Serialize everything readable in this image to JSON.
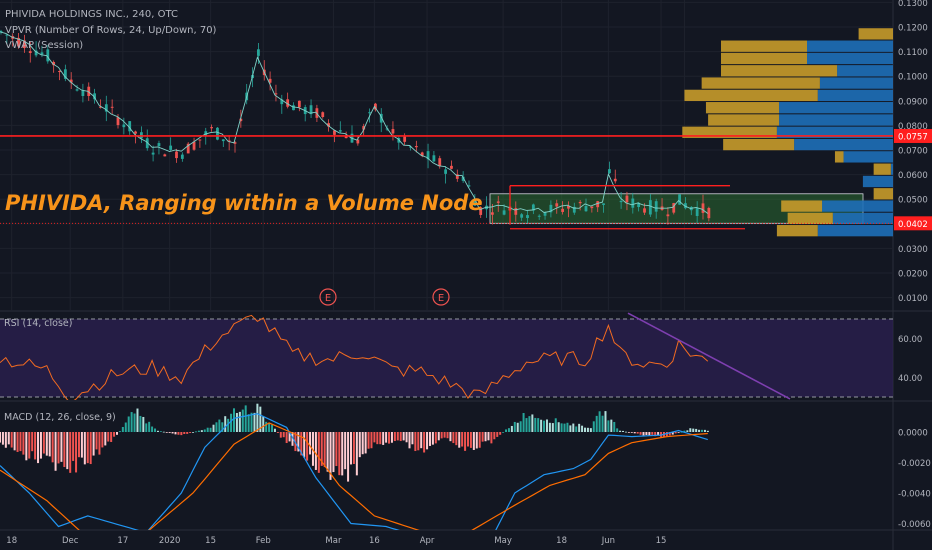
{
  "header": {
    "title": "PHIVIDA HOLDINGS INC., 240, OTC",
    "vpvr_label": "VPVR (Number Of Rows, 24, Up/Down, 70)",
    "vwap_label": "VWAP (Session)"
  },
  "annotation": {
    "text": "PHIVIDA, Ranging within a Volume Node",
    "color": "#f7931a"
  },
  "colors": {
    "up": "#26a69a",
    "down": "#ef5350",
    "rsi_line": "#f26b21",
    "macd_line": "#2196f3",
    "signal_line": "#ff6d00",
    "level_line": "#ff1f1f",
    "vpvr_up": "#1e6fb8",
    "vpvr_down": "#c89b2a",
    "vwap": "#7fd1c7"
  },
  "events": [
    "E",
    "E"
  ],
  "chart_data": [
    {
      "type": "candlestick",
      "title": "PHIVIDA HOLDINGS INC., 240, OTC",
      "ylim": [
        0.0,
        0.13
      ],
      "y_ticks": [
        "0.1300",
        "0.1200",
        "0.1100",
        "0.1000",
        "0.0900",
        "0.0800",
        "0.0700",
        "0.0600",
        "0.0500",
        "0.0400",
        "0.0300",
        "0.0200",
        "0.0100"
      ],
      "price_labels": [
        {
          "value": 0.0757,
          "label": "0.0757"
        },
        {
          "value": 0.0402,
          "label": "0.0402"
        }
      ],
      "horizontal_levels": [
        0.0757
      ],
      "range_box": {
        "top": 0.0555,
        "bottom": 0.038
      },
      "volume_node": {
        "top": 0.0522,
        "bottom": 0.0402
      },
      "anchors": [
        {
          "t": 0,
          "v": 0.118
        },
        {
          "t": 4,
          "v": 0.1135
        },
        {
          "t": 8,
          "v": 0.108
        },
        {
          "t": 12,
          "v": 0.098
        },
        {
          "t": 15,
          "v": 0.093
        },
        {
          "t": 20,
          "v": 0.083
        },
        {
          "t": 26,
          "v": 0.071
        },
        {
          "t": 31,
          "v": 0.069
        },
        {
          "t": 36,
          "v": 0.078
        },
        {
          "t": 40,
          "v": 0.073
        },
        {
          "t": 44,
          "v": 0.108
        },
        {
          "t": 47,
          "v": 0.093
        },
        {
          "t": 50,
          "v": 0.088
        },
        {
          "t": 54,
          "v": 0.085
        },
        {
          "t": 57,
          "v": 0.079
        },
        {
          "t": 61,
          "v": 0.074
        },
        {
          "t": 64,
          "v": 0.087
        },
        {
          "t": 67,
          "v": 0.076
        },
        {
          "t": 70,
          "v": 0.071
        },
        {
          "t": 73,
          "v": 0.067
        },
        {
          "t": 76,
          "v": 0.063
        },
        {
          "t": 79,
          "v": 0.059
        },
        {
          "t": 82,
          "v": 0.046
        },
        {
          "t": 85,
          "v": 0.047
        },
        {
          "t": 90,
          "v": 0.045
        },
        {
          "t": 95,
          "v": 0.046
        },
        {
          "t": 100,
          "v": 0.0475
        },
        {
          "t": 103,
          "v": 0.048
        },
        {
          "t": 104,
          "v": 0.061
        },
        {
          "t": 106,
          "v": 0.05
        },
        {
          "t": 110,
          "v": 0.047
        },
        {
          "t": 114,
          "v": 0.046
        },
        {
          "t": 116,
          "v": 0.049
        },
        {
          "t": 119,
          "v": 0.046
        },
        {
          "t": 121,
          "v": 0.0452
        }
      ],
      "vpvr": [
        {
          "price": 0.117,
          "up": 0.0,
          "down": 0.16
        },
        {
          "price": 0.112,
          "up": 0.4,
          "down": 0.4
        },
        {
          "price": 0.107,
          "up": 0.4,
          "down": 0.4
        },
        {
          "price": 0.102,
          "up": 0.26,
          "down": 0.54
        },
        {
          "price": 0.097,
          "up": 0.34,
          "down": 0.55
        },
        {
          "price": 0.092,
          "up": 0.35,
          "down": 0.62
        },
        {
          "price": 0.087,
          "up": 0.53,
          "down": 0.34
        },
        {
          "price": 0.082,
          "up": 0.53,
          "down": 0.33
        },
        {
          "price": 0.077,
          "up": 0.54,
          "down": 0.44
        },
        {
          "price": 0.072,
          "up": 0.46,
          "down": 0.33
        },
        {
          "price": 0.067,
          "up": 0.23,
          "down": 0.04
        },
        {
          "price": 0.062,
          "up": 0.01,
          "down": 0.08
        },
        {
          "price": 0.057,
          "up": 0.14,
          "down": 0.0
        },
        {
          "price": 0.052,
          "up": 0.0,
          "down": 0.09
        },
        {
          "price": 0.047,
          "up": 0.33,
          "down": 0.19
        },
        {
          "price": 0.042,
          "up": 0.28,
          "down": 0.21
        },
        {
          "price": 0.037,
          "up": 0.35,
          "down": 0.19
        }
      ]
    },
    {
      "type": "line",
      "title": "RSI (14, close)",
      "ylim": [
        20,
        80
      ],
      "y_ticks": [
        "60.00",
        "40.00"
      ],
      "bands": [
        70,
        30
      ],
      "anchors": [
        {
          "t": 0,
          "v": 50
        },
        {
          "t": 8,
          "v": 44
        },
        {
          "t": 12,
          "v": 30
        },
        {
          "t": 20,
          "v": 42
        },
        {
          "t": 26,
          "v": 45
        },
        {
          "t": 31,
          "v": 40
        },
        {
          "t": 37,
          "v": 60
        },
        {
          "t": 44,
          "v": 72
        },
        {
          "t": 50,
          "v": 52
        },
        {
          "t": 56,
          "v": 49
        },
        {
          "t": 62,
          "v": 53
        },
        {
          "t": 67,
          "v": 44
        },
        {
          "t": 72,
          "v": 43
        },
        {
          "t": 76,
          "v": 38
        },
        {
          "t": 82,
          "v": 30
        },
        {
          "t": 86,
          "v": 40
        },
        {
          "t": 90,
          "v": 48
        },
        {
          "t": 96,
          "v": 50
        },
        {
          "t": 100,
          "v": 49
        },
        {
          "t": 104,
          "v": 67
        },
        {
          "t": 106,
          "v": 52
        },
        {
          "t": 110,
          "v": 47
        },
        {
          "t": 114,
          "v": 47
        },
        {
          "t": 116,
          "v": 57
        },
        {
          "t": 119,
          "v": 51
        },
        {
          "t": 121,
          "v": 48
        }
      ]
    },
    {
      "type": "bar",
      "title": "MACD (12, 26, close, 9)",
      "ylim": [
        -0.0065,
        0.0015
      ],
      "y_ticks": [
        "0.0000",
        "-0.0020",
        "-0.0040",
        "-0.0060"
      ],
      "histogram": [
        {
          "t": 0,
          "v": -0.0008
        },
        {
          "t": 4,
          "v": -0.0015
        },
        {
          "t": 8,
          "v": -0.0018
        },
        {
          "t": 12,
          "v": -0.0025
        },
        {
          "t": 16,
          "v": -0.0016
        },
        {
          "t": 20,
          "v": -0.0002
        },
        {
          "t": 23,
          "v": 0.0014
        },
        {
          "t": 27,
          "v": 0.0001
        },
        {
          "t": 31,
          "v": -0.0002
        },
        {
          "t": 36,
          "v": 0.0003
        },
        {
          "t": 40,
          "v": 0.0013
        },
        {
          "t": 44,
          "v": 0.0016
        },
        {
          "t": 48,
          "v": -0.0003
        },
        {
          "t": 53,
          "v": -0.0018
        },
        {
          "t": 56,
          "v": -0.0026
        },
        {
          "t": 60,
          "v": -0.0028
        },
        {
          "t": 64,
          "v": -0.0008
        },
        {
          "t": 68,
          "v": -0.0005
        },
        {
          "t": 72,
          "v": -0.0013
        },
        {
          "t": 76,
          "v": -0.0003
        },
        {
          "t": 80,
          "v": -0.0012
        },
        {
          "t": 84,
          "v": -0.0006
        },
        {
          "t": 87,
          "v": 0.0003
        },
        {
          "t": 90,
          "v": 0.0012
        },
        {
          "t": 94,
          "v": 0.0008
        },
        {
          "t": 98,
          "v": 0.0005
        },
        {
          "t": 101,
          "v": 0.0003
        },
        {
          "t": 103,
          "v": 0.0014
        },
        {
          "t": 106,
          "v": 0.0001
        },
        {
          "t": 110,
          "v": -0.0002
        },
        {
          "t": 114,
          "v": -0.0003
        },
        {
          "t": 118,
          "v": 0.0002
        },
        {
          "t": 121,
          "v": 0.0001
        }
      ],
      "macd": [
        {
          "t": 0,
          "v": -0.0022
        },
        {
          "t": 5,
          "v": -0.004
        },
        {
          "t": 10,
          "v": -0.0062
        },
        {
          "t": 15,
          "v": -0.0055
        },
        {
          "t": 25,
          "v": -0.0066
        },
        {
          "t": 31,
          "v": -0.004
        },
        {
          "t": 35,
          "v": -0.001
        },
        {
          "t": 40,
          "v": 0.0009
        },
        {
          "t": 44,
          "v": 0.0012
        },
        {
          "t": 49,
          "v": 0.0003
        },
        {
          "t": 54,
          "v": -0.003
        },
        {
          "t": 60,
          "v": -0.006
        },
        {
          "t": 66,
          "v": -0.0062
        },
        {
          "t": 73,
          "v": -0.007
        },
        {
          "t": 78,
          "v": -0.0066
        },
        {
          "t": 84,
          "v": -0.007
        },
        {
          "t": 88,
          "v": -0.004
        },
        {
          "t": 93,
          "v": -0.0028
        },
        {
          "t": 98,
          "v": -0.0024
        },
        {
          "t": 101,
          "v": -0.0018
        },
        {
          "t": 104,
          "v": -0.0002
        },
        {
          "t": 108,
          "v": -0.0003
        },
        {
          "t": 113,
          "v": -0.0002
        },
        {
          "t": 116,
          "v": 0.0001
        },
        {
          "t": 121,
          "v": -0.0005
        }
      ],
      "signal": [
        {
          "t": 0,
          "v": -0.0025
        },
        {
          "t": 8,
          "v": -0.0045
        },
        {
          "t": 14,
          "v": -0.0066
        },
        {
          "t": 25,
          "v": -0.0066
        },
        {
          "t": 33,
          "v": -0.004
        },
        {
          "t": 40,
          "v": -0.0008
        },
        {
          "t": 46,
          "v": 0.0006
        },
        {
          "t": 52,
          "v": -0.0004
        },
        {
          "t": 58,
          "v": -0.0035
        },
        {
          "t": 64,
          "v": -0.0055
        },
        {
          "t": 72,
          "v": -0.0065
        },
        {
          "t": 80,
          "v": -0.0066
        },
        {
          "t": 88,
          "v": -0.0048
        },
        {
          "t": 94,
          "v": -0.0035
        },
        {
          "t": 100,
          "v": -0.0028
        },
        {
          "t": 104,
          "v": -0.0014
        },
        {
          "t": 108,
          "v": -0.0007
        },
        {
          "t": 114,
          "v": -0.0003
        },
        {
          "t": 121,
          "v": -0.0001
        }
      ]
    }
  ],
  "x_axis": {
    "ticks": [
      {
        "label": "18",
        "t": 2
      },
      {
        "label": "Dec",
        "t": 12
      },
      {
        "label": "17",
        "t": 21
      },
      {
        "label": "2020",
        "t": 29
      },
      {
        "label": "15",
        "t": 36
      },
      {
        "label": "Feb",
        "t": 45
      },
      {
        "label": "Mar",
        "t": 57
      },
      {
        "label": "16",
        "t": 64
      },
      {
        "label": "Apr",
        "t": 73
      },
      {
        "label": "May",
        "t": 86
      },
      {
        "label": "18",
        "t": 96
      },
      {
        "label": "Jun",
        "t": 104
      },
      {
        "label": "15",
        "t": 113
      },
      {
        "label": "",
        "t": 117
      }
    ]
  }
}
